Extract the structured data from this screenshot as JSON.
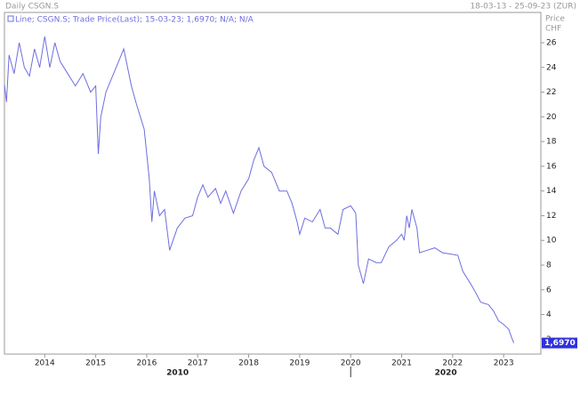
{
  "chart_data": {
    "type": "line",
    "title": "Daily CSGN.S",
    "date_range": "18-03-13 - 25-09-23 (ZUR)",
    "y_axis_label": "Price",
    "y_axis_unit": "CHF",
    "x": [
      2013.21,
      2013.25,
      2013.3,
      2013.4,
      2013.5,
      2013.6,
      2013.7,
      2013.8,
      2013.9,
      2014.0,
      2014.1,
      2014.2,
      2014.3,
      2014.45,
      2014.6,
      2014.75,
      2014.9,
      2015.0,
      2015.05,
      2015.1,
      2015.2,
      2015.3,
      2015.45,
      2015.55,
      2015.7,
      2015.8,
      2015.95,
      2016.05,
      2016.1,
      2016.15,
      2016.25,
      2016.35,
      2016.45,
      2016.6,
      2016.75,
      2016.9,
      2017.0,
      2017.1,
      2017.2,
      2017.35,
      2017.45,
      2017.55,
      2017.7,
      2017.85,
      2018.0,
      2018.1,
      2018.2,
      2018.3,
      2018.45,
      2018.6,
      2018.75,
      2018.85,
      2018.95,
      2019.0,
      2019.1,
      2019.25,
      2019.4,
      2019.5,
      2019.6,
      2019.75,
      2019.85,
      2020.0,
      2020.1,
      2020.15,
      2020.25,
      2020.35,
      2020.5,
      2020.6,
      2020.75,
      2020.9,
      2021.0,
      2021.05,
      2021.1,
      2021.15,
      2021.2,
      2021.3,
      2021.35,
      2021.5,
      2021.65,
      2021.8,
      2021.95,
      2022.1,
      2022.2,
      2022.35,
      2022.45,
      2022.55,
      2022.7,
      2022.8,
      2022.9,
      2023.0,
      2023.1,
      2023.15,
      2023.2
    ],
    "series": [
      {
        "name": "Line; CSGN.S; Trade Price(Last); 15-03-23; 1,6970; N/A; N/A",
        "color": "#6e6ee0",
        "values": [
          22.6,
          21.2,
          25,
          23.5,
          26,
          24,
          23.3,
          25.5,
          24,
          26.5,
          24,
          26,
          24.5,
          23.5,
          22.5,
          23.5,
          22,
          22.5,
          17,
          20,
          22,
          23,
          24.5,
          25.5,
          22.5,
          21,
          19,
          15,
          11.5,
          14,
          12,
          12.5,
          9.2,
          11,
          11.8,
          12,
          13.5,
          14.5,
          13.5,
          14.2,
          13,
          14,
          12.2,
          14,
          15,
          16.5,
          17.5,
          16,
          15.5,
          14,
          14,
          13,
          11.5,
          10.5,
          11.8,
          11.5,
          12.5,
          11,
          11,
          10.5,
          12.5,
          12.8,
          12.2,
          8,
          6.5,
          8.5,
          8.2,
          8.2,
          9.5,
          10,
          10.5,
          10,
          12,
          11,
          12.5,
          11,
          9,
          9.2,
          9.4,
          9,
          8.9,
          8.8,
          7.5,
          6.5,
          5.8,
          5,
          4.8,
          4.3,
          3.5,
          3.2,
          2.8,
          2.2,
          1.7
        ]
      }
    ],
    "last_value": {
      "value": 1.697,
      "label": "1,6970"
    },
    "xlim": [
      2013.21,
      2023.73
    ],
    "xticks": [
      2014,
      2015,
      2016,
      2017,
      2018,
      2019,
      2020,
      2021,
      2022,
      2023
    ],
    "decade_labels": [
      {
        "value": 2010,
        "label": "2010"
      },
      {
        "value": 2020,
        "label": "2020"
      }
    ],
    "ylim": [
      0.8,
      28.45
    ],
    "yticks": [
      2,
      4,
      6,
      8,
      10,
      12,
      14,
      16,
      18,
      20,
      22,
      24,
      26
    ]
  }
}
